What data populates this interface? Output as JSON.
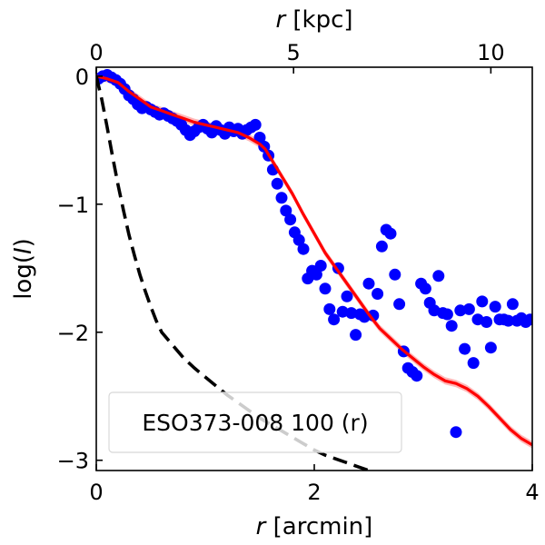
{
  "chart_data": {
    "type": "scatter",
    "legend_text": "ESO373-008 100 (r)",
    "legend_position": "bottom-left",
    "xlabel_math": "r",
    "xlabel_unit": "[arcmin]",
    "x2label_math": "r",
    "x2label_unit": "[kpc]",
    "ylabel_pre": "log(",
    "ylabel_math": "I",
    "ylabel_post": ")",
    "xlim": [
      0,
      4
    ],
    "ylim": [
      -3.08,
      0.07
    ],
    "x2lim": [
      0,
      11.05
    ],
    "xticks": [
      0,
      2,
      4
    ],
    "xtick_labels": [
      "0",
      "2",
      "4"
    ],
    "yticks": [
      0,
      -1,
      -2,
      -3
    ],
    "ytick_labels": [
      "0",
      "−1",
      "−2",
      "−3"
    ],
    "x2ticks": [
      0,
      5,
      10
    ],
    "x2tick_labels": [
      "0",
      "5",
      "10"
    ],
    "colors": {
      "points": "#0000ff",
      "model": "#ff0000",
      "model_band": "#ff9a9a",
      "psf": "#000000",
      "legend_border": "#d8d8d8"
    },
    "series": [
      {
        "name": "data",
        "kind": "scatter",
        "x": [
          0.02,
          0.06,
          0.1,
          0.14,
          0.18,
          0.22,
          0.26,
          0.3,
          0.34,
          0.38,
          0.42,
          0.46,
          0.5,
          0.54,
          0.58,
          0.62,
          0.66,
          0.7,
          0.74,
          0.78,
          0.82,
          0.86,
          0.9,
          0.94,
          0.98,
          1.02,
          1.06,
          1.1,
          1.14,
          1.18,
          1.22,
          1.26,
          1.3,
          1.34,
          1.38,
          1.42,
          1.46,
          1.5,
          1.54,
          1.58,
          1.62,
          1.66,
          1.7,
          1.74,
          1.78,
          1.82,
          1.86,
          1.9,
          1.94,
          1.98,
          2.02,
          2.06,
          2.1,
          2.14,
          2.18,
          2.22,
          2.26,
          2.3,
          2.34,
          2.38,
          2.42,
          2.46,
          2.5,
          2.54,
          2.58,
          2.62,
          2.66,
          2.7,
          2.74,
          2.78,
          2.82,
          2.86,
          2.9,
          2.94,
          2.98,
          3.02,
          3.06,
          3.1,
          3.14,
          3.18,
          3.22,
          3.26,
          3.3,
          3.34,
          3.38,
          3.42,
          3.46,
          3.5,
          3.54,
          3.58,
          3.62,
          3.66,
          3.7,
          3.74,
          3.78,
          3.82,
          3.86,
          3.9,
          3.94,
          3.98
        ],
        "y": [
          -0.02,
          0.0,
          0.01,
          -0.01,
          -0.03,
          -0.06,
          -0.1,
          -0.15,
          -0.18,
          -0.22,
          -0.25,
          -0.24,
          -0.26,
          -0.28,
          -0.3,
          -0.29,
          -0.31,
          -0.33,
          -0.35,
          -0.38,
          -0.42,
          -0.46,
          -0.43,
          -0.4,
          -0.38,
          -0.41,
          -0.44,
          -0.39,
          -0.42,
          -0.45,
          -0.4,
          -0.43,
          -0.41,
          -0.45,
          -0.42,
          -0.4,
          -0.38,
          -0.48,
          -0.55,
          -0.62,
          -0.73,
          -0.84,
          -0.95,
          -1.05,
          -1.12,
          -1.22,
          -1.28,
          -1.35,
          -1.58,
          -1.52,
          -1.55,
          -1.48,
          -1.66,
          -1.82,
          -1.9,
          -1.5,
          -1.84,
          -1.72,
          -1.85,
          -2.02,
          -1.86,
          -1.88,
          -1.62,
          -1.87,
          -1.7,
          -1.33,
          -1.2,
          -1.23,
          -1.55,
          -1.78,
          -2.15,
          -2.28,
          -2.31,
          -2.34,
          -1.62,
          -1.66,
          -1.77,
          -1.83,
          -1.56,
          -1.85,
          -1.86,
          -1.95,
          -2.78,
          -1.83,
          -2.13,
          -1.82,
          -2.24,
          -1.9,
          -1.76,
          -1.92,
          -2.12,
          -1.8,
          -1.9,
          -1.9,
          -1.91,
          -1.78,
          -1.91,
          -1.89,
          -1.92,
          -1.9
        ],
        "label": ""
      },
      {
        "name": "model",
        "kind": "line",
        "x": [
          0,
          0.1,
          0.2,
          0.3,
          0.4,
          0.5,
          0.6,
          0.7,
          0.8,
          0.9,
          1.0,
          1.1,
          1.2,
          1.3,
          1.4,
          1.5,
          1.55,
          1.6,
          1.7,
          1.8,
          1.9,
          2.0,
          2.1,
          2.2,
          2.3,
          2.4,
          2.5,
          2.6,
          2.7,
          2.8,
          2.9,
          3.0,
          3.1,
          3.2,
          3.3,
          3.4,
          3.5,
          3.6,
          3.7,
          3.8,
          3.9,
          4.0
        ],
        "y": [
          0.0,
          -0.02,
          -0.05,
          -0.12,
          -0.18,
          -0.24,
          -0.27,
          -0.3,
          -0.33,
          -0.36,
          -0.38,
          -0.4,
          -0.42,
          -0.44,
          -0.48,
          -0.53,
          -0.57,
          -0.64,
          -0.78,
          -0.92,
          -1.08,
          -1.23,
          -1.38,
          -1.5,
          -1.62,
          -1.74,
          -1.86,
          -1.97,
          -2.05,
          -2.13,
          -2.2,
          -2.27,
          -2.33,
          -2.38,
          -2.4,
          -2.44,
          -2.5,
          -2.58,
          -2.67,
          -2.76,
          -2.83,
          -2.88
        ]
      },
      {
        "name": "psf",
        "kind": "dashed-line",
        "x": [
          0,
          0.05,
          0.1,
          0.15,
          0.2,
          0.25,
          0.3,
          0.35,
          0.4,
          0.45,
          0.5,
          0.55,
          0.6,
          0.7,
          0.8,
          0.9,
          1.0,
          1.1,
          1.2,
          1.3,
          1.4,
          1.5,
          1.6,
          1.7,
          1.8,
          1.9,
          2.0,
          2.1,
          2.2,
          2.3,
          2.4,
          2.5
        ],
        "y": [
          0.0,
          -0.18,
          -0.4,
          -0.63,
          -0.85,
          -1.05,
          -1.24,
          -1.4,
          -1.55,
          -1.68,
          -1.8,
          -1.91,
          -2.0,
          -2.1,
          -2.2,
          -2.28,
          -2.35,
          -2.42,
          -2.49,
          -2.55,
          -2.61,
          -2.67,
          -2.72,
          -2.77,
          -2.82,
          -2.87,
          -2.92,
          -2.96,
          -2.99,
          -3.02,
          -3.05,
          -3.08
        ]
      }
    ]
  }
}
